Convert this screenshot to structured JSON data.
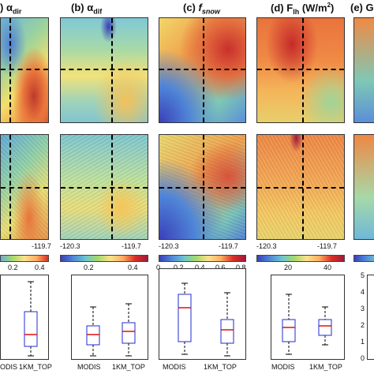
{
  "panels": [
    {
      "letter": "(a)",
      "symbol": "α",
      "sub": "dir",
      "italic": false,
      "visible": ") α"
    },
    {
      "letter": "(b)",
      "symbol": "α",
      "sub": "dif",
      "italic": false
    },
    {
      "letter": "(c)",
      "symbol": "f",
      "sub": "snow",
      "italic": true
    },
    {
      "letter": "(d)",
      "symbol": "F",
      "sub": "lh",
      "unit": "(W/m",
      "unit_sup": "2",
      "unit_end": ")"
    },
    {
      "letter": "(e)",
      "symbol": "Gl",
      "partial": true
    }
  ],
  "lon_ticks": {
    "a": [
      "-119.7"
    ],
    "b": [
      "-120.3",
      "-119.7"
    ],
    "c": [
      "-120.3",
      "-119.7"
    ],
    "d": [
      "-120.3",
      "-119.7"
    ]
  },
  "colorbar_ticks": {
    "a": [
      "0.2",
      "0.4"
    ],
    "b": [
      "0.2",
      "0.4"
    ],
    "c": [
      "0",
      "0.2",
      "0.4",
      "0.6",
      "0.8"
    ],
    "d": [
      "20",
      "40"
    ]
  },
  "box_yticks_e": [
    "5",
    "4",
    "3",
    "2",
    "1",
    "0"
  ],
  "box_categories": [
    "MODIS",
    "1KM_TOP"
  ],
  "box_categories_a": [
    "ODIS",
    "1KM_TOP"
  ],
  "colors": {
    "box_edge": "#1f2bd0",
    "median": "#e01010",
    "dash": "#000000"
  }
}
